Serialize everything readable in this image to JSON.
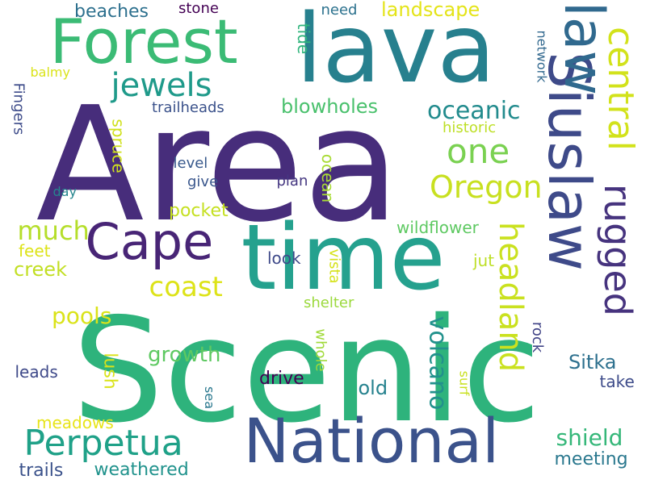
{
  "words": [
    {
      "text": "Scenic",
      "color": "#2eb37c",
      "orientation": "horizontal"
    },
    {
      "text": "Area",
      "color": "#472d7b",
      "orientation": "horizontal"
    },
    {
      "text": "lava",
      "color": "#27808e",
      "orientation": "horizontal"
    },
    {
      "text": "Forest",
      "color": "#3bbb75",
      "orientation": "horizontal"
    },
    {
      "text": "time",
      "color": "#25a18e",
      "orientation": "horizontal"
    },
    {
      "text": "National",
      "color": "#3b528b",
      "orientation": "horizontal"
    },
    {
      "text": "Siuslaw",
      "color": "#3e4a89",
      "orientation": "vertical"
    },
    {
      "text": "law",
      "color": "#30698e",
      "orientation": "vertical"
    },
    {
      "text": "Cape",
      "color": "#482576",
      "orientation": "horizontal"
    },
    {
      "text": "Perpetua",
      "color": "#1fa188",
      "orientation": "horizontal"
    },
    {
      "text": "jewels",
      "color": "#1f9a8a",
      "orientation": "horizontal"
    },
    {
      "text": "central",
      "color": "#d2e21b",
      "orientation": "vertical"
    },
    {
      "text": "one",
      "color": "#7ad151",
      "orientation": "horizontal"
    },
    {
      "text": "Oregon",
      "color": "#c8e020",
      "orientation": "horizontal"
    },
    {
      "text": "rugged",
      "color": "#46337e",
      "orientation": "vertical"
    },
    {
      "text": "headland",
      "color": "#cae11f",
      "orientation": "vertical"
    },
    {
      "text": "coast",
      "color": "#dde318",
      "orientation": "horizontal"
    },
    {
      "text": "oceanic",
      "color": "#228b8d",
      "orientation": "horizontal"
    },
    {
      "text": "much",
      "color": "#b5de2b",
      "orientation": "horizontal"
    },
    {
      "text": "shield",
      "color": "#35b779",
      "orientation": "horizontal"
    },
    {
      "text": "volcano",
      "color": "#21918c",
      "orientation": "vertical"
    },
    {
      "text": "landscape",
      "color": "#e4e419",
      "orientation": "horizontal"
    },
    {
      "text": "blowholes",
      "color": "#4ac16d",
      "orientation": "horizontal"
    },
    {
      "text": "beaches",
      "color": "#2d708e",
      "orientation": "horizontal"
    },
    {
      "text": "stone",
      "color": "#440154",
      "orientation": "horizontal"
    },
    {
      "text": "need",
      "color": "#2c728e",
      "orientation": "horizontal"
    },
    {
      "text": "tide",
      "color": "#2fb47c",
      "orientation": "vertical"
    },
    {
      "text": "network",
      "color": "#31688e",
      "orientation": "vertical"
    },
    {
      "text": "Fingers",
      "color": "#3e4c8a",
      "orientation": "vertical"
    },
    {
      "text": "balmy",
      "color": "#dae319",
      "orientation": "horizontal"
    },
    {
      "text": "trailheads",
      "color": "#3b528b",
      "orientation": "horizontal"
    },
    {
      "text": "historic",
      "color": "#bddf26",
      "orientation": "horizontal"
    },
    {
      "text": "spruce",
      "color": "#d0e11c",
      "orientation": "vertical"
    },
    {
      "text": "level",
      "color": "#38598c",
      "orientation": "horizontal"
    },
    {
      "text": "give",
      "color": "#39568c",
      "orientation": "horizontal"
    },
    {
      "text": "plan",
      "color": "#453781",
      "orientation": "horizontal"
    },
    {
      "text": "ocean",
      "color": "#a8db34",
      "orientation": "vertical"
    },
    {
      "text": "day",
      "color": "#25858e",
      "orientation": "horizontal"
    },
    {
      "text": "pocket",
      "color": "#c5e021",
      "orientation": "horizontal"
    },
    {
      "text": "wildflower",
      "color": "#5ec962",
      "orientation": "horizontal"
    },
    {
      "text": "feet",
      "color": "#dde318",
      "orientation": "horizontal"
    },
    {
      "text": "creek",
      "color": "#c2df23",
      "orientation": "horizontal"
    },
    {
      "text": "look",
      "color": "#3e4989",
      "orientation": "horizontal"
    },
    {
      "text": "vista",
      "color": "#d5e21a",
      "orientation": "vertical"
    },
    {
      "text": "jut",
      "color": "#bddf26",
      "orientation": "horizontal"
    },
    {
      "text": "shelter",
      "color": "#9bd93c",
      "orientation": "horizontal"
    },
    {
      "text": "pools",
      "color": "#dae319",
      "orientation": "horizontal"
    },
    {
      "text": "rock",
      "color": "#414487",
      "orientation": "vertical"
    },
    {
      "text": "growth",
      "color": "#5ec962",
      "orientation": "horizontal"
    },
    {
      "text": "lush",
      "color": "#dae319",
      "orientation": "vertical"
    },
    {
      "text": "whole",
      "color": "#a0da39",
      "orientation": "vertical"
    },
    {
      "text": "Sitka",
      "color": "#2d708e",
      "orientation": "horizontal"
    },
    {
      "text": "leads",
      "color": "#3e4989",
      "orientation": "horizontal"
    },
    {
      "text": "sea",
      "color": "#2a788e",
      "orientation": "vertical"
    },
    {
      "text": "drive",
      "color": "#440154",
      "orientation": "horizontal"
    },
    {
      "text": "old",
      "color": "#26828e",
      "orientation": "horizontal"
    },
    {
      "text": "surf",
      "color": "#c8e020",
      "orientation": "vertical"
    },
    {
      "text": "take",
      "color": "#3e4c8a",
      "orientation": "horizontal"
    },
    {
      "text": "meadows",
      "color": "#e7e419",
      "orientation": "horizontal"
    },
    {
      "text": "meeting",
      "color": "#2a788e",
      "orientation": "horizontal"
    },
    {
      "text": "trails",
      "color": "#3b528b",
      "orientation": "horizontal"
    },
    {
      "text": "weathered",
      "color": "#20928c",
      "orientation": "horizontal"
    }
  ]
}
